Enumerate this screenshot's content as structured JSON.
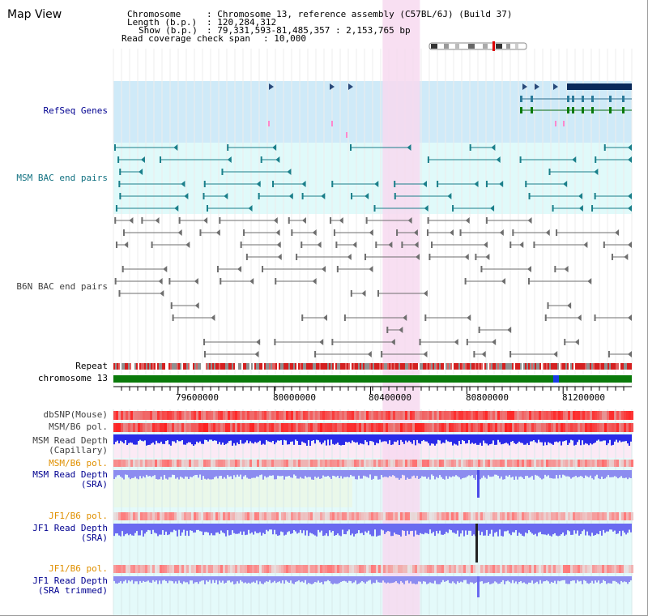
{
  "header": {
    "title": "Map View",
    "chromosome_key": "Chromosome",
    "chromosome_value": ": Chromosome 13, reference assembly (C57BL/6J) (Build 37)",
    "length_key": "Length (b.p.)",
    "length_value": ": 120,284,312",
    "show_key": "Show (b.p.)",
    "show_value": ": 79,331,593-81,485,357 : 2,153,765 bp",
    "coverage_key": "Read coverage check span",
    "coverage_value": ": 10,000"
  },
  "tracks": {
    "refseq": "RefSeq Genes",
    "msm_bac": "MSM BAC end pairs",
    "b6n_bac": "B6N BAC end pairs",
    "repeat": "Repeat",
    "chromosome": "chromosome 13",
    "dbsnp": "dbSNP(Mouse)",
    "msm_b6_pol": "MSM/B6 pol.",
    "msm_depth_cap_1": "MSM Read Depth",
    "msm_depth_cap_2": "(Capillary)",
    "msm_b6_pol2": "MSM/B6 pol.",
    "msm_depth_sra_1": "MSM Read Depth",
    "msm_depth_sra_2": "(SRA)",
    "jf1_b6_pol": "JF1/B6 pol.",
    "jf1_depth_sra_1": "JF1 Read Depth",
    "jf1_depth_sra_2": "(SRA)",
    "jf1_b6_pol2": "JF1/B6 pol.",
    "jf1_depth_trim_1": "JF1 Read Depth",
    "jf1_depth_trim_2": "(SRA trimmed)"
  },
  "axis": {
    "ticks": [
      "79600000",
      "80000000",
      "80400000",
      "80800000",
      "81200000"
    ],
    "tick_values": [
      79600000,
      80000000,
      80400000,
      80800000,
      81200000
    ],
    "start": 79331593,
    "end": 81485357
  },
  "highlight": {
    "start": 80450000,
    "end": 80605000
  },
  "colors": {
    "refseq_bg": "#cfeaf8",
    "msm_bg": "#e0fafa",
    "highlight": "#f7d9f0",
    "chrom_green": "#0a7a0a",
    "teal_feature": "#1a7f8a",
    "gray_feature": "#6e6e6e",
    "depth_blue": "#2a2ae8",
    "depth_light": "#8c8cf0",
    "label_navy": "#000090",
    "label_teal": "#107080",
    "label_orange": "#e09000",
    "label_gray": "#404040"
  }
}
